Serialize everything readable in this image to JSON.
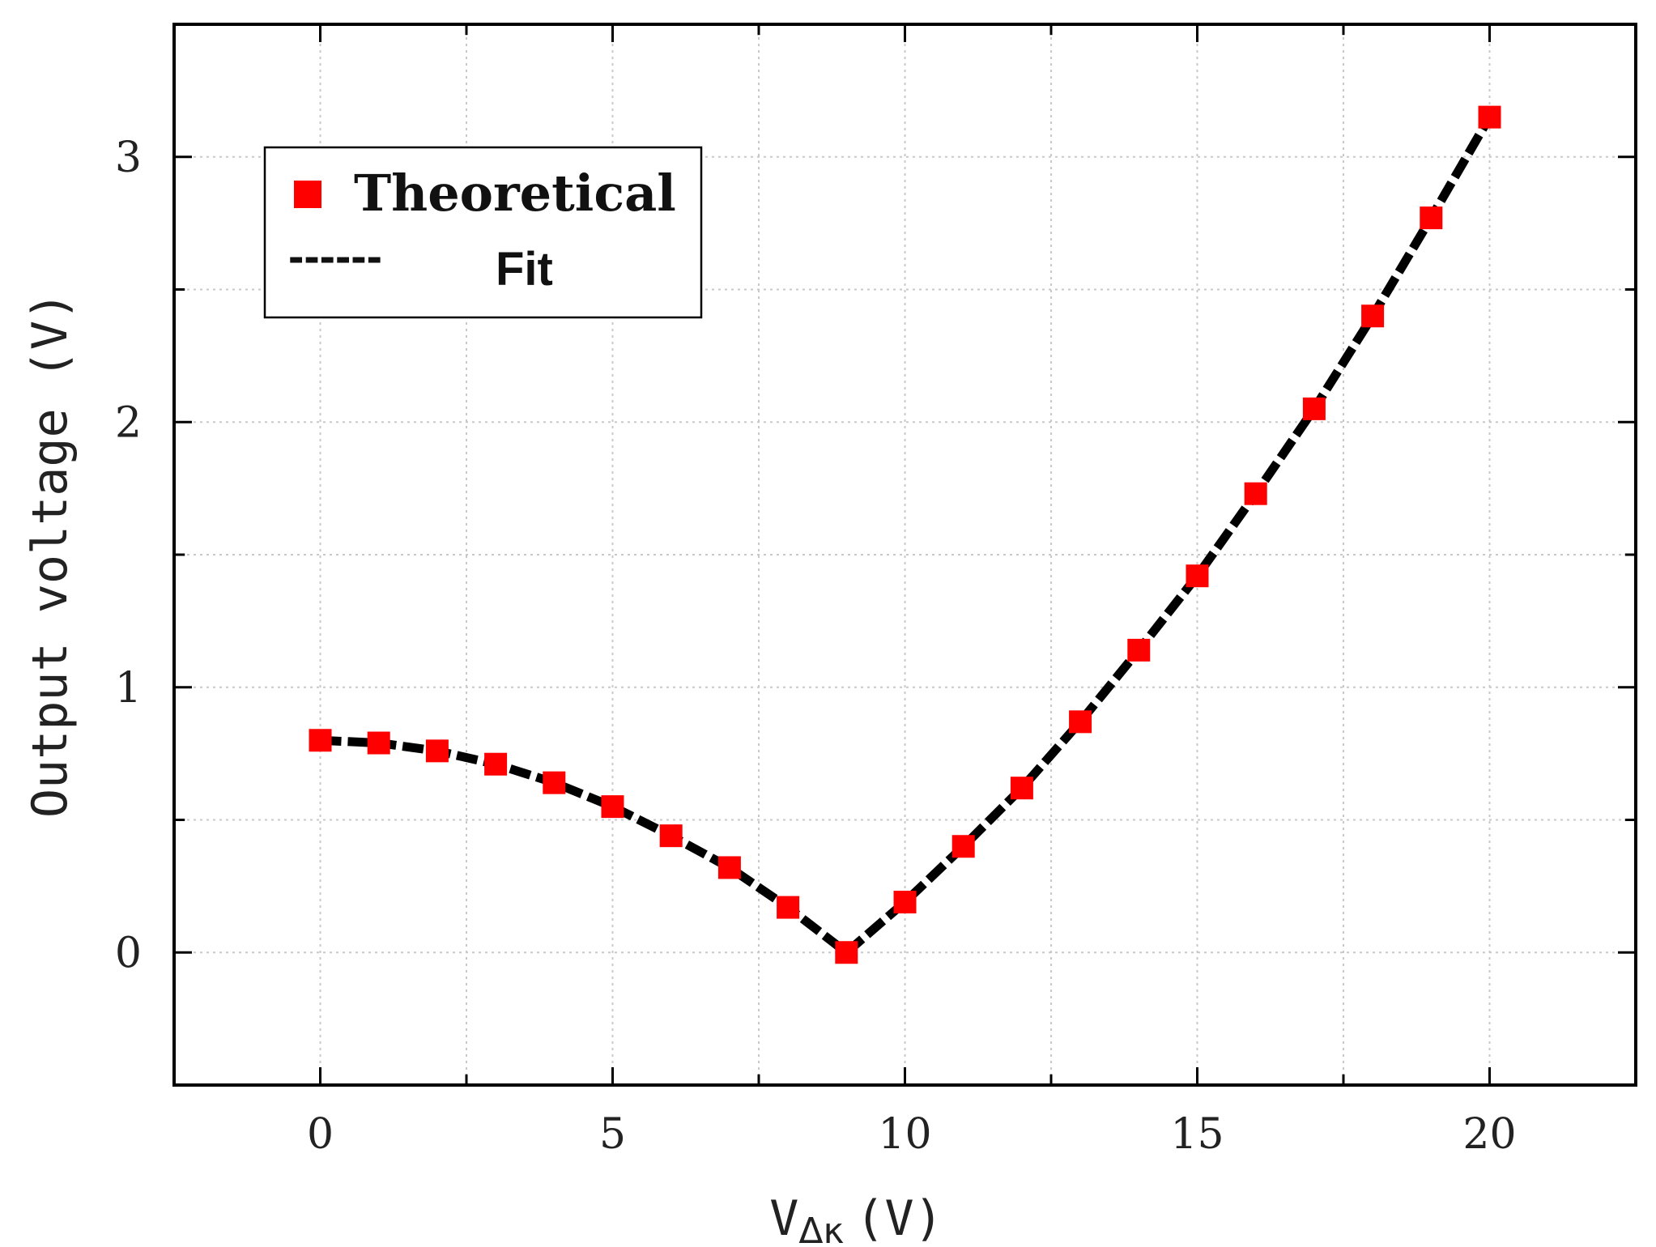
{
  "chart_data": {
    "type": "scatter",
    "title": "",
    "xlabel": "V",
    "xlabel_subscript": "Δκ",
    "xlabel_unit": "(V)",
    "ylabel": "Output voltage (V)",
    "xlim": [
      -2.5,
      22.5
    ],
    "ylim": [
      -0.5,
      3.5
    ],
    "xticks": [
      0,
      5,
      10,
      15,
      20
    ],
    "yticks": [
      0,
      1,
      2,
      3
    ],
    "xtick_labels": [
      "0",
      "5",
      "10",
      "15",
      "20"
    ],
    "ytick_labels": [
      "0",
      "1",
      "2",
      "3"
    ],
    "grid": true,
    "legend_position": "top-left",
    "series": [
      {
        "name": "Theoretical",
        "style": "markers",
        "marker": "square",
        "color": "#ff0000",
        "x": [
          0,
          1,
          2,
          3,
          4,
          5,
          6,
          7,
          8,
          9,
          10,
          11,
          12,
          13,
          14,
          15,
          16,
          17,
          18,
          19,
          20
        ],
        "y": [
          0.8,
          0.79,
          0.76,
          0.71,
          0.64,
          0.55,
          0.44,
          0.32,
          0.17,
          0.0,
          0.19,
          0.4,
          0.62,
          0.87,
          1.14,
          1.42,
          1.73,
          2.05,
          2.4,
          2.77,
          3.15
        ]
      },
      {
        "name": "Fit",
        "style": "dashed-line",
        "color": "#000000",
        "x": [
          0,
          1,
          2,
          3,
          4,
          5,
          6,
          7,
          8,
          9,
          10,
          11,
          12,
          13,
          14,
          15,
          16,
          17,
          18,
          19,
          20
        ],
        "y": [
          0.8,
          0.79,
          0.76,
          0.71,
          0.64,
          0.55,
          0.44,
          0.32,
          0.17,
          0.0,
          0.19,
          0.4,
          0.62,
          0.87,
          1.14,
          1.42,
          1.73,
          2.05,
          2.4,
          2.77,
          3.15
        ]
      }
    ],
    "legend": {
      "theoretical_label": "Theoretical",
      "fit_sample": "------",
      "fit_label": "Fit"
    }
  }
}
